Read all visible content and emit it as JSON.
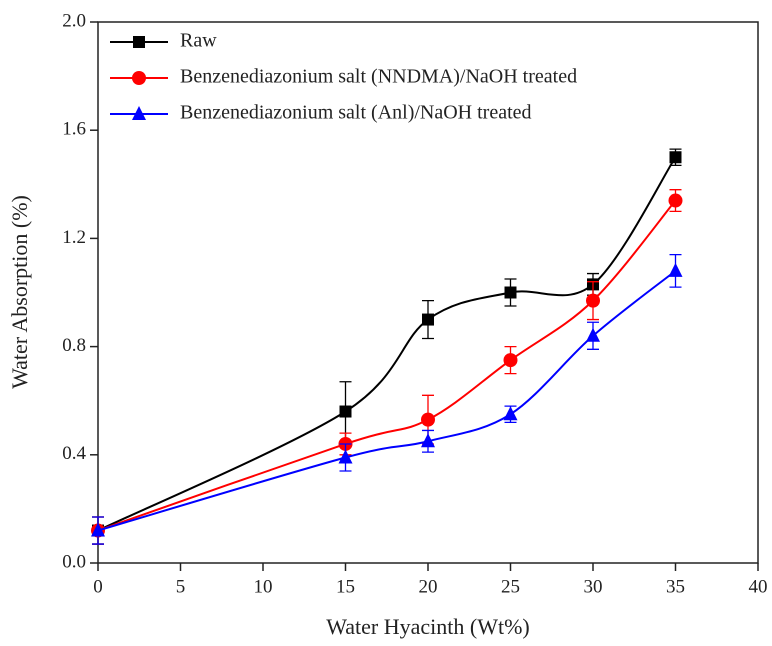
{
  "chart_data": {
    "type": "line",
    "x_label": "Water Hyacinth (Wt%)",
    "y_label": "Water Absorption (%)",
    "x": [
      0,
      15,
      20,
      25,
      30,
      35
    ],
    "series": [
      {
        "name": "Raw",
        "color": "#000000",
        "marker": "square",
        "values": [
          0.12,
          0.56,
          0.9,
          1.0,
          1.03,
          1.5
        ],
        "errors": [
          0.05,
          0.11,
          0.07,
          0.05,
          0.04,
          0.03
        ]
      },
      {
        "name": "Benzenediazonium salt (NNDMA)/NaOH treated",
        "color": "#ff0000",
        "marker": "circle",
        "values": [
          0.12,
          0.44,
          0.53,
          0.75,
          0.97,
          1.34
        ],
        "errors": [
          0.05,
          0.04,
          0.09,
          0.05,
          0.07,
          0.04
        ]
      },
      {
        "name": "Benzenediazonium salt (Anl)/NaOH treated",
        "color": "#0000ff",
        "marker": "triangle",
        "values": [
          0.12,
          0.39,
          0.45,
          0.55,
          0.84,
          1.08
        ],
        "errors": [
          0.05,
          0.05,
          0.04,
          0.03,
          0.05,
          0.06
        ]
      }
    ],
    "xlim": [
      0,
      40
    ],
    "xticks": [
      0,
      5,
      10,
      15,
      20,
      25,
      30,
      35,
      40
    ],
    "ylim": [
      0,
      2
    ],
    "yticks": [
      {
        "value": 0,
        "label": "0.0"
      },
      0.4,
      0.8,
      1.2,
      1.6,
      {
        "value": 2,
        "label": "2.0"
      }
    ],
    "legend": "upper left",
    "grid": false
  }
}
